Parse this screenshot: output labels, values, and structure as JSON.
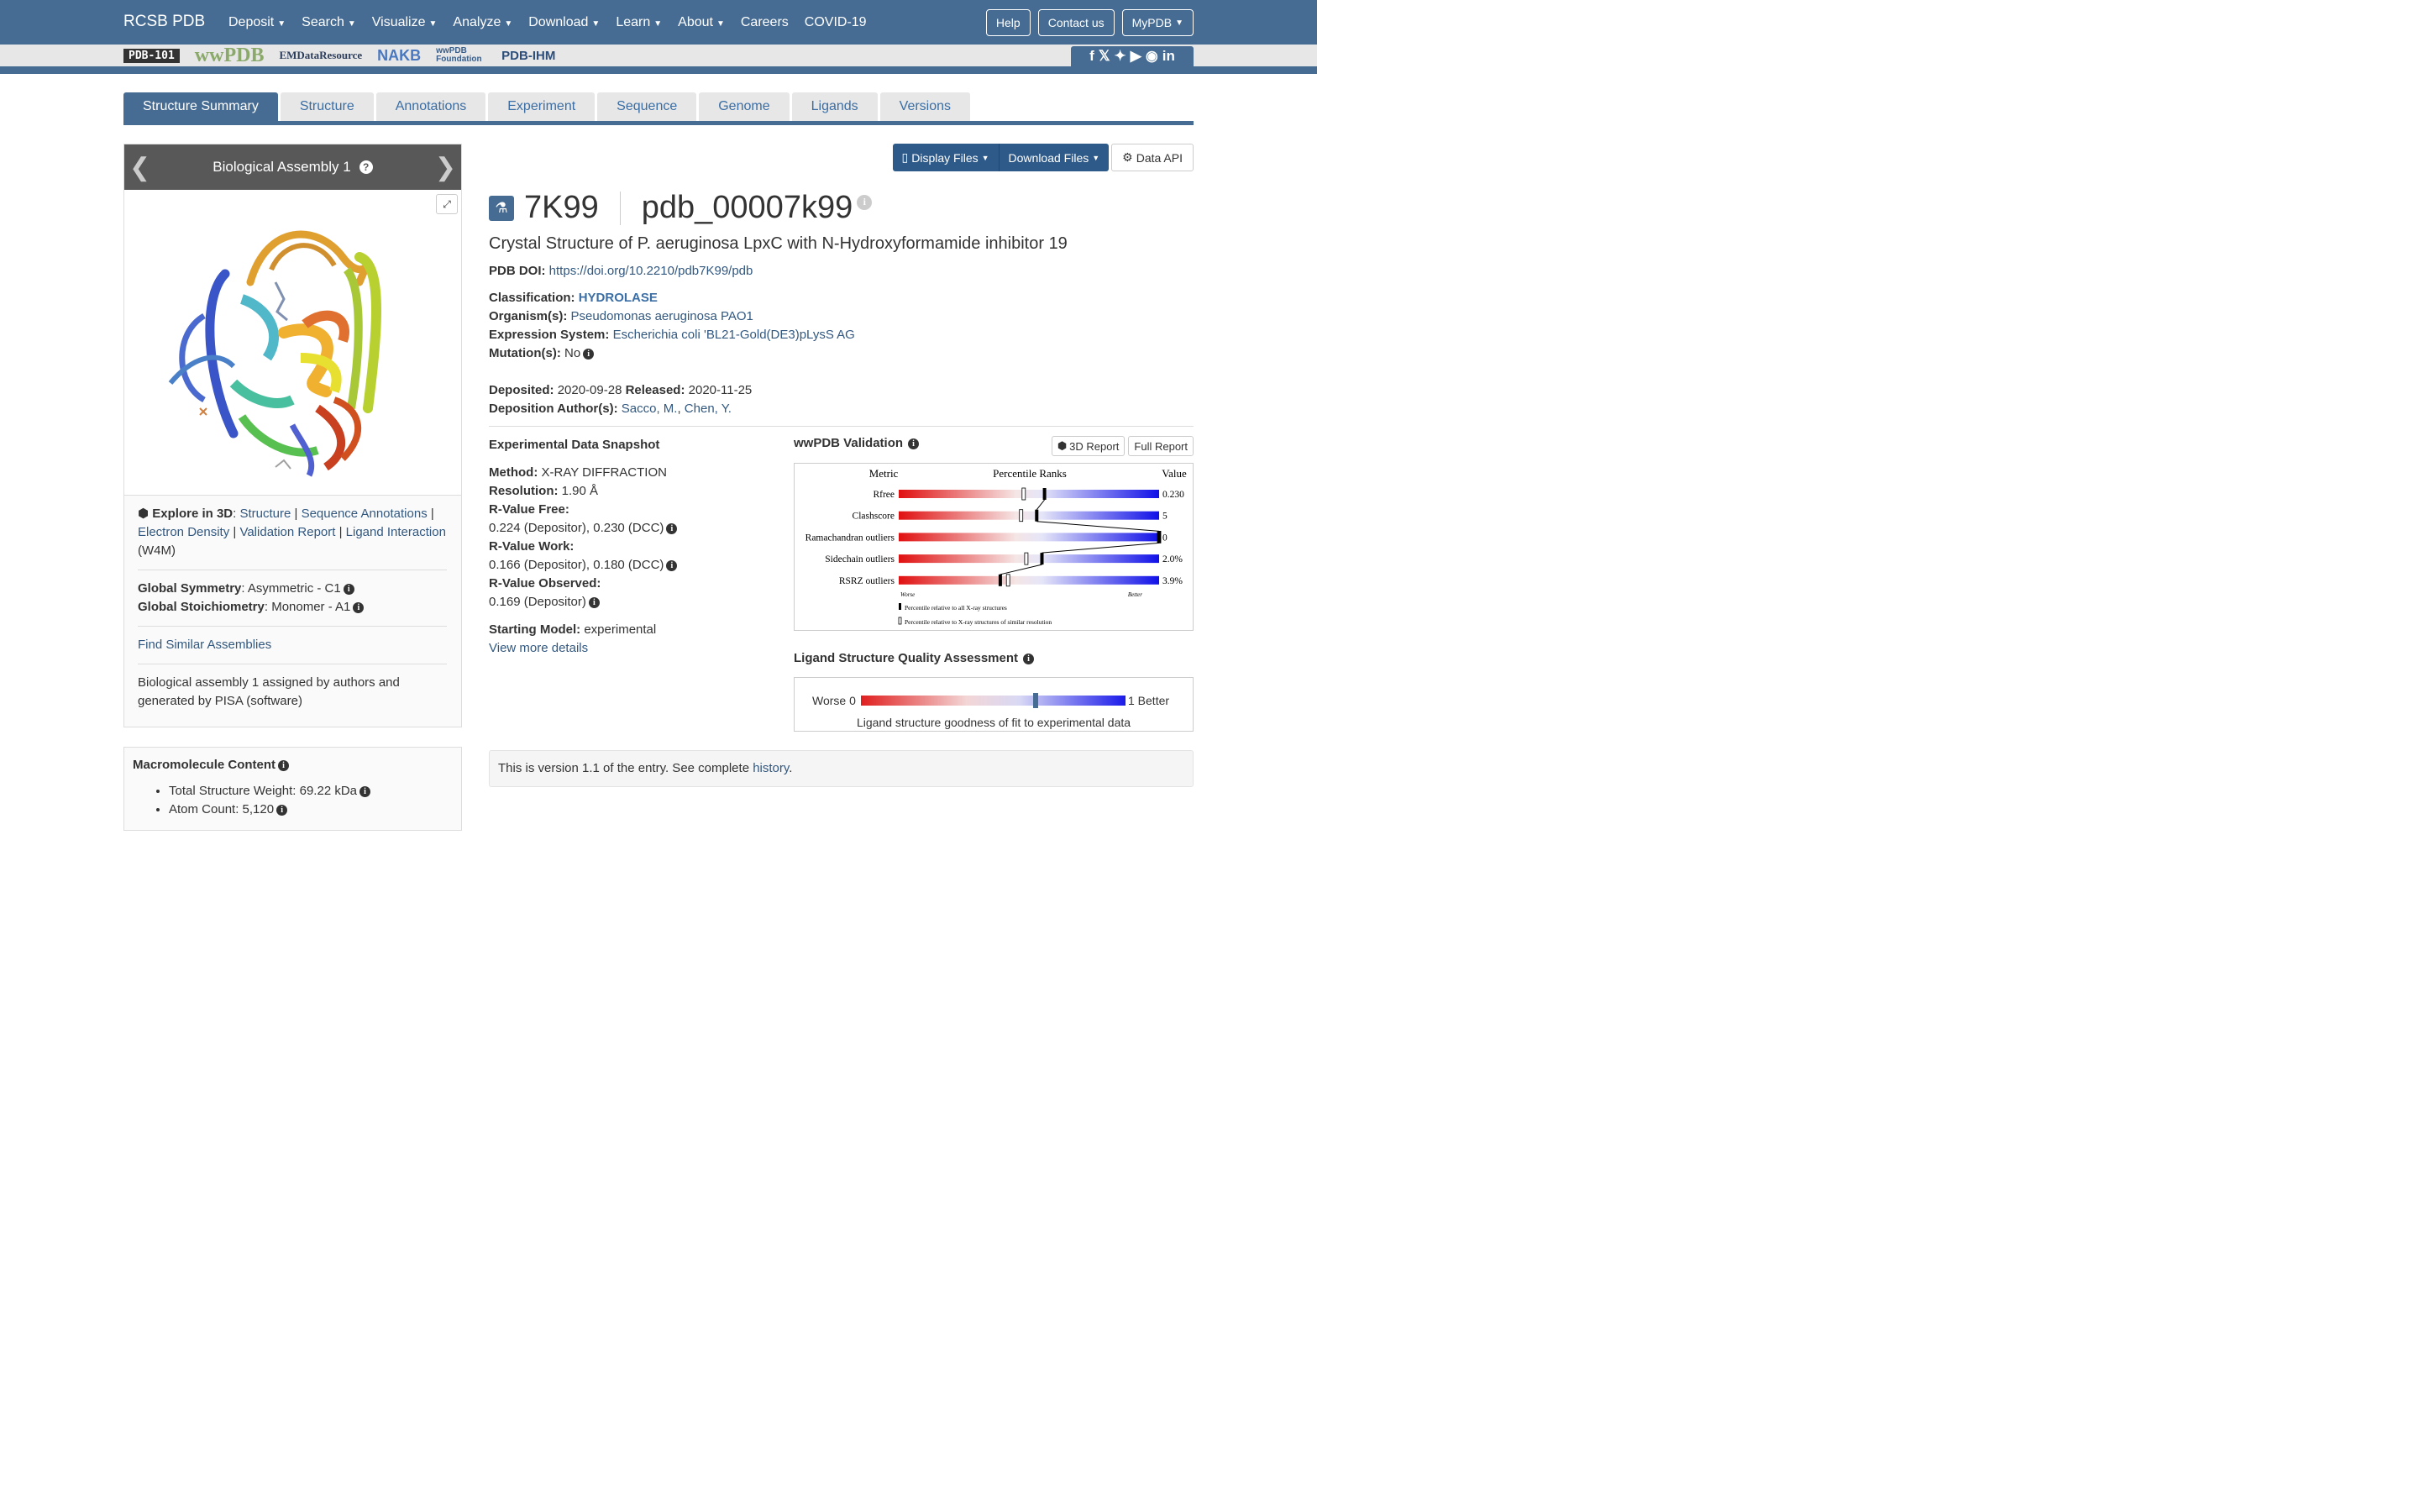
{
  "nav": {
    "brand": "RCSB PDB",
    "menu": [
      "Deposit",
      "Search",
      "Visualize",
      "Analyze",
      "Download",
      "Learn",
      "About"
    ],
    "plain": [
      "Careers",
      "COVID-19"
    ],
    "buttons": {
      "help": "Help",
      "contact": "Contact us",
      "mypdb": "MyPDB"
    }
  },
  "logos": {
    "pdb101": "PDB-101",
    "wwpdb": "wwPDB",
    "emdr": "EMDataResource",
    "nakb": "NAKB",
    "foundation": "wwPDB Foundation",
    "ihm": "PDB-IHM"
  },
  "tabs": [
    "Structure Summary",
    "Structure",
    "Annotations",
    "Experiment",
    "Sequence",
    "Genome",
    "Ligands",
    "Versions"
  ],
  "assembly": {
    "title": "Biological Assembly 1",
    "explore_label": "Explore in 3D",
    "explore_links": {
      "structure": "Structure",
      "seq": "Sequence Annotations",
      "ed": "Electron Density",
      "vr": "Validation Report",
      "li": "Ligand Interaction"
    },
    "ligand_code": "(W4M)",
    "symmetry_label": "Global Symmetry",
    "symmetry_value": ": Asymmetric - C1",
    "stoich_label": "Global Stoichiometry",
    "stoich_value": ": Monomer - A1",
    "find_similar": "Find Similar Assemblies",
    "note": "Biological assembly 1 assigned by authors and generated by PISA (software)"
  },
  "macro": {
    "title": "Macromolecule Content",
    "weight": "Total Structure Weight: 69.22 kDa",
    "atoms": "Atom Count: 5,120"
  },
  "files": {
    "display": "Display Files",
    "download": "Download Files",
    "api": "Data API"
  },
  "entry": {
    "id": "7K99",
    "ext_id": "pdb_00007k99",
    "title": "Crystal Structure of P. aeruginosa LpxC with N-Hydroxyformamide inhibitor 19",
    "doi_label": "PDB DOI:",
    "doi": "https://doi.org/10.2210/pdb7K99/pdb",
    "classification_label": "Classification:",
    "classification": "HYDROLASE",
    "organism_label": "Organism(s):",
    "organism": "Pseudomonas aeruginosa PAO1",
    "expression_label": "Expression System:",
    "expression": "Escherichia coli 'BL21-Gold(DE3)pLysS AG",
    "mutation_label": "Mutation(s):",
    "mutation": "No",
    "deposited_label": "Deposited:",
    "deposited": "2020-09-28",
    "released_label": "Released:",
    "released": "2020-11-25",
    "authors_label": "Deposition Author(s):",
    "author1": "Sacco, M.",
    "author2": "Chen, Y."
  },
  "experiment": {
    "title": "Experimental Data Snapshot",
    "method_label": "Method:",
    "method": "X-RAY DIFFRACTION",
    "resolution_label": "Resolution:",
    "resolution": "1.90 Å",
    "rfree_label": "R-Value Free:",
    "rfree": "0.224 (Depositor), 0.230 (DCC)",
    "rwork_label": "R-Value Work:",
    "rwork": "0.166 (Depositor), 0.180 (DCC)",
    "robs_label": "R-Value Observed:",
    "robs": "0.169 (Depositor)",
    "start_label": "Starting Model:",
    "start": "experimental",
    "more": "View more details"
  },
  "validation": {
    "title": "wwPDB Validation",
    "btn3d": "3D Report",
    "btnfull": "Full Report",
    "col_metric": "Metric",
    "col_pct": "Percentile Ranks",
    "col_value": "Value",
    "worse": "Worse",
    "better": "Better",
    "legend_all": "Percentile relative to all X-ray structures",
    "legend_sim": "Percentile relative to X-ray structures of similar resolution",
    "rows": [
      {
        "metric": "Rfree",
        "value": "0.230",
        "pct_all": 0.56,
        "pct_sim": 0.48
      },
      {
        "metric": "Clashscore",
        "value": "5",
        "pct_all": 0.53,
        "pct_sim": 0.47
      },
      {
        "metric": "Ramachandran outliers",
        "value": "0",
        "pct_all": 1.0,
        "pct_sim": 1.0
      },
      {
        "metric": "Sidechain outliers",
        "value": "2.0%",
        "pct_all": 0.55,
        "pct_sim": 0.49
      },
      {
        "metric": "RSRZ outliers",
        "value": "3.9%",
        "pct_all": 0.39,
        "pct_sim": 0.42
      }
    ]
  },
  "ligand_quality": {
    "title": "Ligand Structure Quality Assessment",
    "worse": "Worse 0",
    "better": "1 Better",
    "caption": "Ligand structure goodness of fit to experimental data"
  },
  "version": {
    "text": "This is version 1.1 of the entry. See complete ",
    "link": "history",
    "end": "."
  },
  "colors": {
    "nav": "#476c93",
    "link": "#325880",
    "classification": "#3a6ea5"
  }
}
